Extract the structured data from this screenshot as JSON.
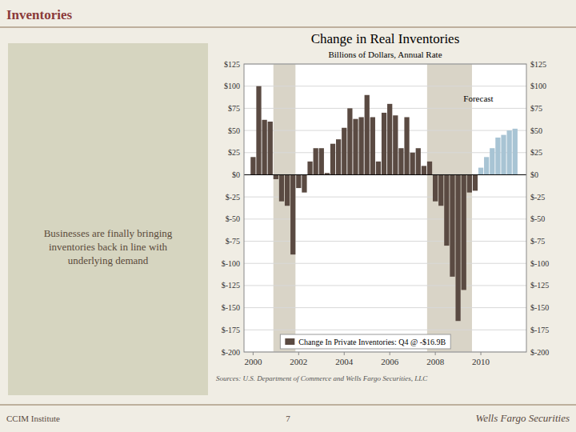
{
  "page_title": "Inventories",
  "left_text": "Businesses are finally bringing\ninventories back in line with\nunderlying demand",
  "source": "Sources: U.S. Department of Commerce and Wells Fargo Securities, LLC",
  "footer_left": "CCIM Institute",
  "footer_page": "7",
  "footer_right": "Wells Fargo Securities",
  "chart_data": {
    "type": "bar",
    "title": "Change in Real Inventories",
    "subtitle": "Billions of Dollars, Annual Rate",
    "annotation": "Forecast",
    "x": [
      2000.0,
      2000.25,
      2000.5,
      2000.75,
      2001.0,
      2001.25,
      2001.5,
      2001.75,
      2002.0,
      2002.25,
      2002.5,
      2002.75,
      2003.0,
      2003.25,
      2003.5,
      2003.75,
      2004.0,
      2004.25,
      2004.5,
      2004.75,
      2005.0,
      2005.25,
      2005.5,
      2005.75,
      2006.0,
      2006.25,
      2006.5,
      2006.75,
      2007.0,
      2007.25,
      2007.5,
      2007.75,
      2008.0,
      2008.25,
      2008.5,
      2008.75,
      2009.0,
      2009.25,
      2009.5,
      2009.75,
      2010.0,
      2010.25,
      2010.5,
      2010.75,
      2011.0,
      2011.25,
      2011.5
    ],
    "series": [
      {
        "name": "Change In Private Inventories: Q4 @ -$16.9B",
        "color": "#5a4a42",
        "colors": [
          "#5a4a42",
          "#5a4a42",
          "#5a4a42",
          "#5a4a42",
          "#5a4a42",
          "#5a4a42",
          "#5a4a42",
          "#5a4a42",
          "#5a4a42",
          "#5a4a42",
          "#5a4a42",
          "#5a4a42",
          "#5a4a42",
          "#5a4a42",
          "#5a4a42",
          "#5a4a42",
          "#5a4a42",
          "#5a4a42",
          "#5a4a42",
          "#5a4a42",
          "#5a4a42",
          "#5a4a42",
          "#5a4a42",
          "#5a4a42",
          "#5a4a42",
          "#5a4a42",
          "#5a4a42",
          "#5a4a42",
          "#5a4a42",
          "#5a4a42",
          "#5a4a42",
          "#5a4a42",
          "#5a4a42",
          "#5a4a42",
          "#5a4a42",
          "#5a4a42",
          "#5a4a42",
          "#5a4a42",
          "#5a4a42",
          "#5a4a42",
          "#a8c4d4",
          "#a8c4d4",
          "#a8c4d4",
          "#a8c4d4",
          "#a8c4d4",
          "#a8c4d4",
          "#a8c4d4"
        ],
        "values": [
          20,
          100,
          62,
          60,
          -5,
          -30,
          -35,
          -90,
          -15,
          -20,
          15,
          30,
          30,
          2,
          35,
          40,
          53,
          75,
          63,
          65,
          90,
          65,
          15,
          70,
          80,
          67,
          30,
          65,
          25,
          30,
          10,
          15,
          -30,
          -35,
          -80,
          -115,
          -165,
          -130,
          -20,
          -18,
          8,
          20,
          30,
          42,
          45,
          50,
          52
        ]
      }
    ],
    "recession_bands": [
      [
        2001.0,
        2001.75
      ],
      [
        2007.75,
        2009.5
      ]
    ],
    "xlim": [
      1999.6,
      2012.0
    ],
    "xticks": [
      2000,
      2002,
      2004,
      2006,
      2008,
      2010
    ],
    "ylim": [
      -200,
      125
    ],
    "yticks": [
      {
        "value": -200,
        "label": "$-200"
      },
      {
        "value": -175,
        "label": "$-175"
      },
      {
        "value": -150,
        "label": "$-150"
      },
      {
        "value": -125,
        "label": "$-125"
      },
      {
        "value": -100,
        "label": "$-100"
      },
      {
        "value": -75,
        "label": "$-75"
      },
      {
        "value": -50,
        "label": "$-50"
      },
      {
        "value": -25,
        "label": "$-25"
      },
      {
        "value": 0,
        "label": "$0"
      },
      {
        "value": 25,
        "label": "$25"
      },
      {
        "value": 50,
        "label": "$50"
      },
      {
        "value": 75,
        "label": "$75"
      },
      {
        "value": 100,
        "label": "$100"
      },
      {
        "value": 125,
        "label": "$125"
      }
    ],
    "grid": true,
    "legend": "bottom"
  }
}
